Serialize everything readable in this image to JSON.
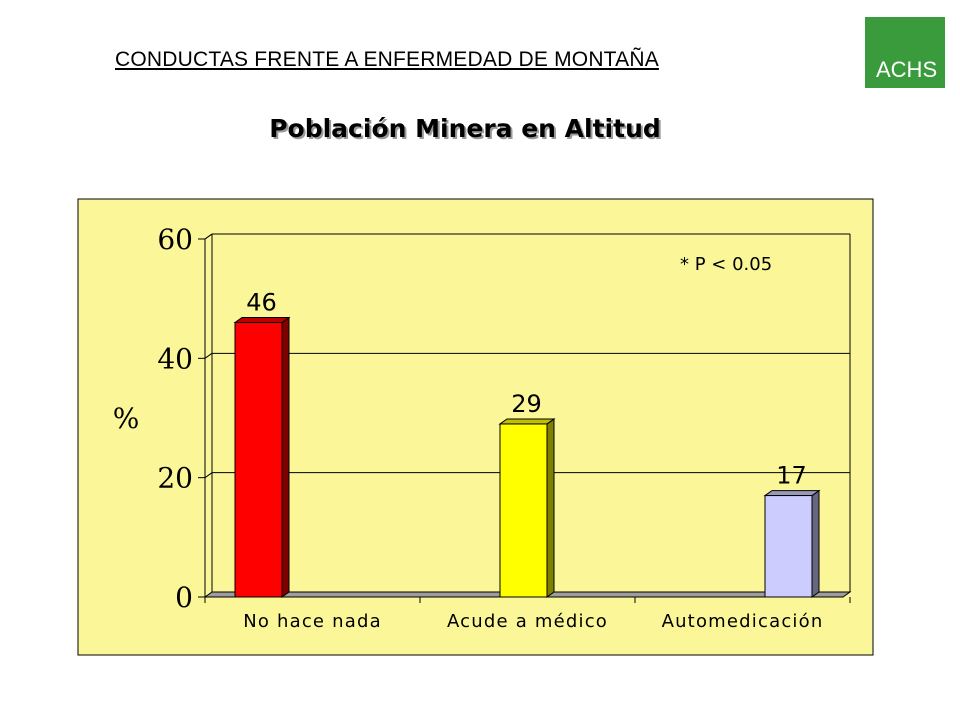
{
  "header": {
    "title": "CONDUCTAS FRENTE A ENFERMEDAD DE MONTAÑA",
    "subtitle": "Población Minera en Altitud",
    "badge": "ACHS"
  },
  "colors": {
    "plot_background": "#fbf799",
    "badge": "#3a9b3c",
    "bar_red": "#ff0000",
    "bar_yellow": "#ffff00",
    "bar_lavender": "#ccccff"
  },
  "chart_data": {
    "type": "bar",
    "categories": [
      "No hace nada",
      "Acude a médico",
      "Automedicación"
    ],
    "values": [
      46,
      29,
      17
    ],
    "data_labels": [
      "46",
      "29",
      "17"
    ],
    "bar_colors": [
      "#ff0000",
      "#ffff00",
      "#ccccff"
    ],
    "ylabel": "%",
    "xlabel": "",
    "ylim": [
      0,
      60
    ],
    "yticks": [
      0,
      20,
      40,
      60
    ],
    "grid": true,
    "annotation": "* P < 0.05"
  }
}
